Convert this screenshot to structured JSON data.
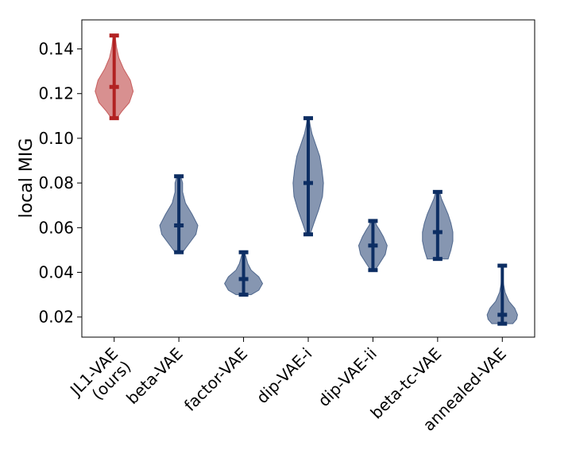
{
  "chart_data": {
    "type": "violin",
    "title": "",
    "xlabel": "",
    "ylabel": "local MIG",
    "ylim": [
      0.011,
      0.153
    ],
    "yticks": [
      "0.02",
      "0.04",
      "0.06",
      "0.08",
      "0.10",
      "0.12",
      "0.14"
    ],
    "categories": [
      [
        "JL1-VAE",
        "(ours)"
      ],
      [
        "beta-VAE"
      ],
      [
        "factor-VAE"
      ],
      [
        "dip-VAE-i"
      ],
      [
        "dip-VAE-ii"
      ],
      [
        "beta-tc-VAE"
      ],
      [
        "annealed-VAE"
      ]
    ],
    "series": [
      {
        "name": "JL1-VAE (ours)",
        "min": 0.109,
        "median": 0.123,
        "max": 0.146,
        "color": "#b22222",
        "density": [
          [
            0.109,
            0.15
          ],
          [
            0.112,
            0.4
          ],
          [
            0.116,
            0.8
          ],
          [
            0.121,
            1.0
          ],
          [
            0.126,
            0.85
          ],
          [
            0.131,
            0.5
          ],
          [
            0.136,
            0.25
          ],
          [
            0.141,
            0.12
          ],
          [
            0.146,
            0.05
          ]
        ]
      },
      {
        "name": "beta-VAE",
        "min": 0.049,
        "median": 0.061,
        "max": 0.083,
        "color": "#0d2e63",
        "density": [
          [
            0.049,
            0.2
          ],
          [
            0.053,
            0.55
          ],
          [
            0.057,
            0.9
          ],
          [
            0.061,
            1.0
          ],
          [
            0.066,
            0.7
          ],
          [
            0.071,
            0.35
          ],
          [
            0.076,
            0.2
          ],
          [
            0.08,
            0.2
          ],
          [
            0.083,
            0.1
          ]
        ]
      },
      {
        "name": "factor-VAE",
        "min": 0.03,
        "median": 0.037,
        "max": 0.049,
        "color": "#0d2e63",
        "density": [
          [
            0.03,
            0.4
          ],
          [
            0.032,
            0.8
          ],
          [
            0.035,
            1.0
          ],
          [
            0.038,
            0.8
          ],
          [
            0.041,
            0.4
          ],
          [
            0.044,
            0.22
          ],
          [
            0.047,
            0.12
          ],
          [
            0.049,
            0.05
          ]
        ]
      },
      {
        "name": "dip-VAE-i",
        "min": 0.057,
        "median": 0.08,
        "max": 0.109,
        "color": "#0d2e63",
        "density": [
          [
            0.057,
            0.1
          ],
          [
            0.062,
            0.3
          ],
          [
            0.068,
            0.55
          ],
          [
            0.074,
            0.75
          ],
          [
            0.08,
            0.8
          ],
          [
            0.086,
            0.72
          ],
          [
            0.092,
            0.6
          ],
          [
            0.097,
            0.4
          ],
          [
            0.102,
            0.2
          ],
          [
            0.106,
            0.1
          ],
          [
            0.109,
            0.05
          ]
        ]
      },
      {
        "name": "dip-VAE-ii",
        "min": 0.041,
        "median": 0.052,
        "max": 0.063,
        "color": "#0d2e63",
        "density": [
          [
            0.041,
            0.12
          ],
          [
            0.044,
            0.35
          ],
          [
            0.048,
            0.65
          ],
          [
            0.052,
            0.75
          ],
          [
            0.056,
            0.55
          ],
          [
            0.059,
            0.35
          ],
          [
            0.061,
            0.2
          ],
          [
            0.063,
            0.1
          ]
        ]
      },
      {
        "name": "beta-tc-VAE",
        "min": 0.046,
        "median": 0.058,
        "max": 0.076,
        "color": "#0d2e63",
        "density": [
          [
            0.046,
            0.55
          ],
          [
            0.05,
            0.7
          ],
          [
            0.054,
            0.8
          ],
          [
            0.058,
            0.8
          ],
          [
            0.062,
            0.7
          ],
          [
            0.066,
            0.55
          ],
          [
            0.07,
            0.35
          ],
          [
            0.073,
            0.2
          ],
          [
            0.076,
            0.1
          ]
        ]
      },
      {
        "name": "annealed-VAE",
        "min": 0.017,
        "median": 0.021,
        "max": 0.043,
        "color": "#0d2e63",
        "density": [
          [
            0.017,
            0.55
          ],
          [
            0.019,
            0.75
          ],
          [
            0.021,
            0.8
          ],
          [
            0.024,
            0.65
          ],
          [
            0.027,
            0.35
          ],
          [
            0.031,
            0.15
          ],
          [
            0.035,
            0.06
          ],
          [
            0.039,
            0.03
          ],
          [
            0.043,
            0.01
          ]
        ]
      }
    ],
    "grid": false,
    "legend": "none"
  }
}
